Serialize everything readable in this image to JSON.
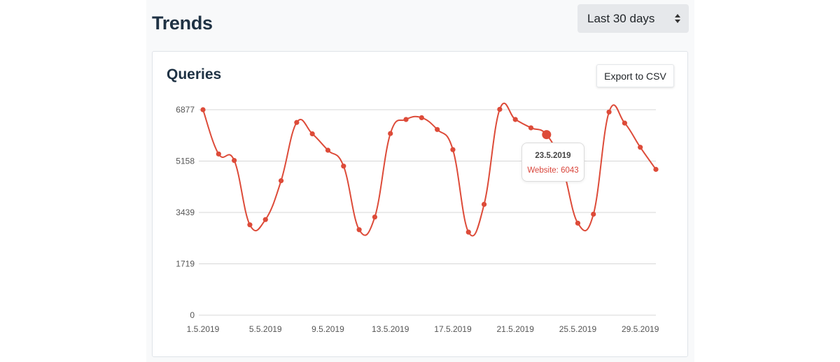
{
  "page": {
    "title": "Trends",
    "range_select": {
      "value": "Last 30 days"
    }
  },
  "card": {
    "title": "Queries",
    "export_label": "Export to CSV"
  },
  "tooltip": {
    "date": "23.5.2019",
    "label": "Website: 6043"
  },
  "colors": {
    "series": "#dd4b39",
    "title": "#1f3244",
    "grid": "#d7d7d7"
  },
  "icons": {
    "range_select_arrows": "up-down-arrows-icon"
  },
  "chart_data": {
    "type": "line",
    "yticks": [
      0,
      1719,
      3439,
      5158,
      6877
    ],
    "ylim": [
      0,
      6877
    ],
    "xtick_labels": [
      "1.5.2019",
      "5.5.2019",
      "9.5.2019",
      "13.5.2019",
      "17.5.2019",
      "21.5.2019",
      "25.5.2019",
      "29.5.2019"
    ],
    "x": [
      "1.5.2019",
      "2.5.2019",
      "3.5.2019",
      "4.5.2019",
      "5.5.2019",
      "6.5.2019",
      "7.5.2019",
      "8.5.2019",
      "9.5.2019",
      "10.5.2019",
      "11.5.2019",
      "12.5.2019",
      "13.5.2019",
      "14.5.2019",
      "15.5.2019",
      "16.5.2019",
      "17.5.2019",
      "18.5.2019",
      "19.5.2019",
      "20.5.2019",
      "21.5.2019",
      "22.5.2019",
      "23.5.2019",
      "24.5.2019",
      "25.5.2019",
      "26.5.2019",
      "27.5.2019",
      "28.5.2019",
      "29.5.2019",
      "30.5.2019"
    ],
    "series": [
      {
        "name": "Website",
        "values": [
          6877,
          5395,
          5180,
          3025,
          3200,
          4500,
          6450,
          6070,
          5520,
          4990,
          2860,
          3285,
          6080,
          6550,
          6610,
          6215,
          5540,
          2780,
          3710,
          6890,
          6550,
          6270,
          6043,
          4990,
          3080,
          3380,
          6800,
          6430,
          5620,
          4880
        ]
      }
    ],
    "highlight_index": 22,
    "grid": true
  }
}
